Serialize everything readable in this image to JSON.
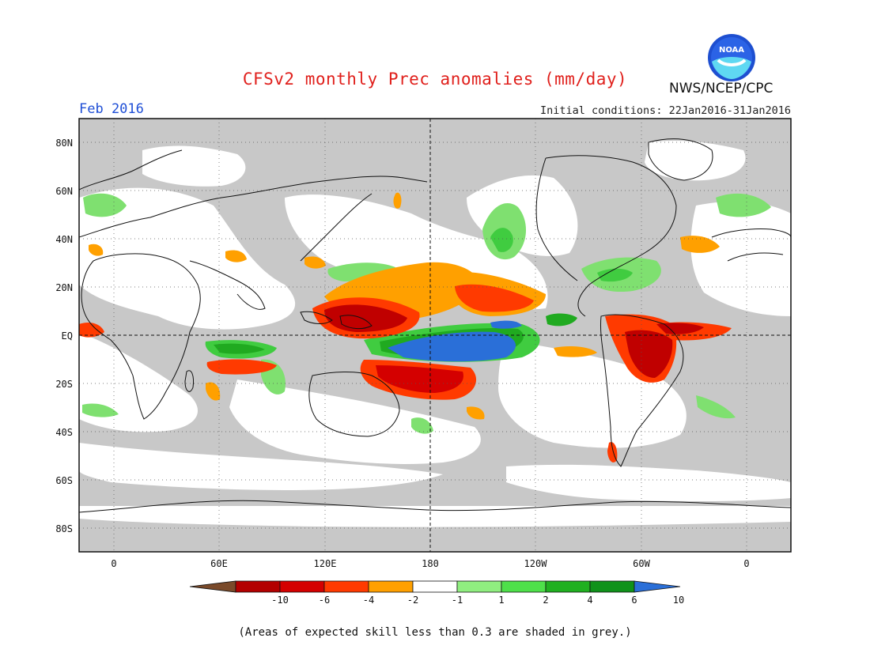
{
  "title": "CFSv2 monthly Prec anomalies (mm/day)",
  "month": "Feb 2016",
  "initial_conditions": "Initial conditions: 22Jan2016-31Jan2016",
  "agency": "NWS/NCEP/CPC",
  "logo_text": "NOAA",
  "footnote": "(Areas of expected skill less than 0.3 are shaded in grey.)",
  "map": {
    "lat_labels": [
      "80N",
      "60N",
      "40N",
      "20N",
      "EQ",
      "20S",
      "40S",
      "60S",
      "80S"
    ],
    "lon_labels": [
      "0",
      "60E",
      "120E",
      "180",
      "120W",
      "60W",
      "0"
    ],
    "low_skill_color": "#c8c8c8"
  },
  "legend": {
    "labels": [
      "-10",
      "-6",
      "-4",
      "-2",
      "-1",
      "1",
      "2",
      "4",
      "6",
      "10"
    ],
    "colors": [
      "#7a4a2a",
      "#b30000",
      "#d40000",
      "#ff3a00",
      "#ffa000",
      "#ffffff",
      "#90ee80",
      "#4ee04a",
      "#20b020",
      "#10921a",
      "#2a6fd8"
    ]
  }
}
